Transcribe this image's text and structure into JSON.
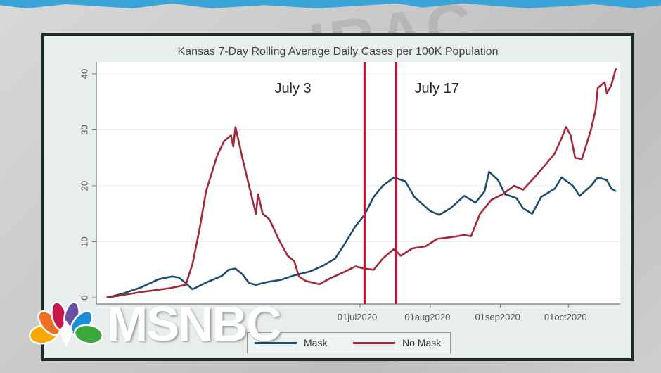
{
  "network_logo": {
    "text": "MSNBC",
    "icon": "nbc-peacock-icon"
  },
  "chart_data": {
    "type": "line",
    "title": "Kansas 7-Day Rolling Average Daily Cases per 100K Population",
    "xlabel": "",
    "ylabel": "",
    "ylim": [
      0,
      40
    ],
    "yticks": [
      0,
      10,
      20,
      30,
      40
    ],
    "xticks": [
      "01jul2020",
      "01aug2020",
      "01sep2020",
      "01oct2020"
    ],
    "x_hidden_ticks_note": "earlier ticks obscured by logo",
    "grid": true,
    "legend_position": "bottom",
    "x_units": "days relative to 01jul2020",
    "annotations": [
      {
        "label": "July 3",
        "x": 2,
        "type": "vertical-line",
        "color": "#c8102e"
      },
      {
        "label": "July 17",
        "x": 16,
        "type": "vertical-line",
        "color": "#c8102e"
      }
    ],
    "series": [
      {
        "name": "Mask",
        "color": "#1f4e6b",
        "x": [
          -112,
          -105,
          -97,
          -89,
          -83,
          -80,
          -77,
          -74,
          -68,
          -61,
          -58,
          -55,
          -52,
          -49,
          -46,
          -41,
          -35,
          -29,
          -22,
          -16,
          -11,
          -7,
          -2,
          2,
          6,
          10,
          15,
          20,
          24,
          31,
          35,
          40,
          46,
          51,
          55,
          57,
          61,
          64,
          69,
          72,
          76,
          80,
          86,
          89,
          94,
          97,
          102,
          105,
          109,
          111,
          113
        ],
        "values": [
          0,
          0.7,
          1.8,
          3.3,
          3.8,
          3.6,
          2.6,
          1.5,
          2.7,
          3.9,
          5.0,
          5.2,
          4.2,
          2.6,
          2.3,
          2.8,
          3.2,
          4.0,
          4.7,
          5.8,
          7.0,
          9.5,
          12.8,
          14.8,
          18.0,
          20.0,
          21.5,
          20.8,
          18.0,
          15.5,
          14.8,
          16.0,
          18.2,
          17.0,
          19.0,
          22.5,
          21.0,
          18.5,
          17.8,
          16.0,
          15.0,
          18.0,
          19.5,
          21.5,
          20.0,
          18.2,
          20.0,
          21.5,
          21.0,
          19.5,
          19.0
        ]
      },
      {
        "name": "No Mask",
        "color": "#a3283a",
        "x": [
          -112,
          -97,
          -84,
          -77,
          -74,
          -71,
          -68,
          -63,
          -60,
          -57,
          -56,
          -55,
          -52,
          -49,
          -46,
          -45,
          -43,
          -40,
          -36,
          -32,
          -29,
          -27,
          -24,
          -18,
          -13,
          -7,
          -2,
          2,
          6,
          10,
          15,
          18,
          23,
          29,
          34,
          40,
          46,
          49,
          53,
          58,
          63,
          68,
          72,
          77,
          82,
          86,
          89,
          91,
          93,
          95,
          98,
          102,
          104,
          105,
          108,
          109,
          111,
          113
        ],
        "values": [
          0,
          1.0,
          1.7,
          2.3,
          6,
          12,
          19,
          25.5,
          28,
          29,
          27,
          30.5,
          25,
          20,
          15,
          18.5,
          15,
          14,
          10.5,
          7.5,
          6.5,
          3.8,
          3.0,
          2.4,
          3.5,
          4.6,
          5.6,
          5.2,
          5.0,
          7.0,
          8.7,
          7.5,
          8.8,
          9.2,
          10.5,
          10.8,
          11.2,
          11.0,
          15.0,
          17.5,
          18.5,
          20.0,
          19.3,
          21.5,
          23.8,
          25.8,
          28.5,
          30.5,
          29.0,
          25.0,
          24.8,
          30.0,
          33.5,
          37.5,
          38.5,
          36.5,
          38.0,
          41.0
        ]
      }
    ],
    "legend": [
      {
        "label": "Mask",
        "color": "#1f4e6b"
      },
      {
        "label": "No Mask",
        "color": "#a3283a"
      }
    ]
  }
}
